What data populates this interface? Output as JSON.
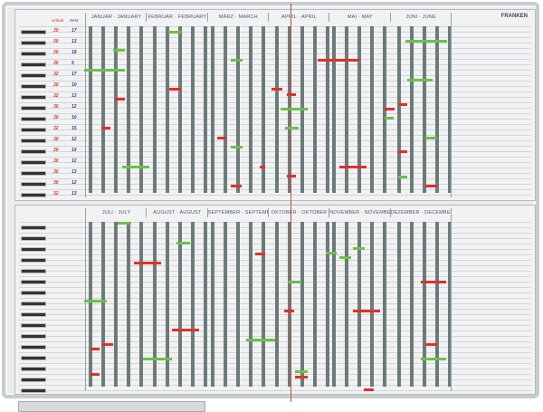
{
  "brand": "FRANKEN",
  "top_panel": {
    "months": [
      "JANUAR · JANUARY",
      "FEBRUAR · FEBRUARY",
      "MÄRZ · MARCH",
      "APRIL · APRIL",
      "MAI · MAY",
      "JUNI · JUNE"
    ],
    "column_headers": {
      "vacation": "Urlaub",
      "remaining": "Rest"
    },
    "vacation_days": [
      "30",
      "30",
      "30",
      "30",
      "32",
      "30",
      "32",
      "30",
      "30",
      "32",
      "30",
      "30",
      "30",
      "30",
      "30",
      "32"
    ],
    "remaining_days": [
      "17",
      "13",
      "18",
      "5",
      "17",
      "10",
      "13",
      "12",
      "10",
      "15",
      "12",
      "14",
      "12",
      "13",
      "12",
      "13"
    ]
  },
  "bottom_panel": {
    "months": [
      "JULI · JULY",
      "AUGUST · AUGUST",
      "SEPTEMBER · SEPTEMBER",
      "OKTOBER · OKTOBER",
      "NOVEMBER · NOVEMBER",
      "DEZEMBER · DECEMBER"
    ]
  },
  "colors": {
    "vacation_bar": "#e0302a",
    "other_bar": "#6cc04a",
    "weekend_stripe": "#6d7a7a",
    "frame": "#c9cccf"
  }
}
